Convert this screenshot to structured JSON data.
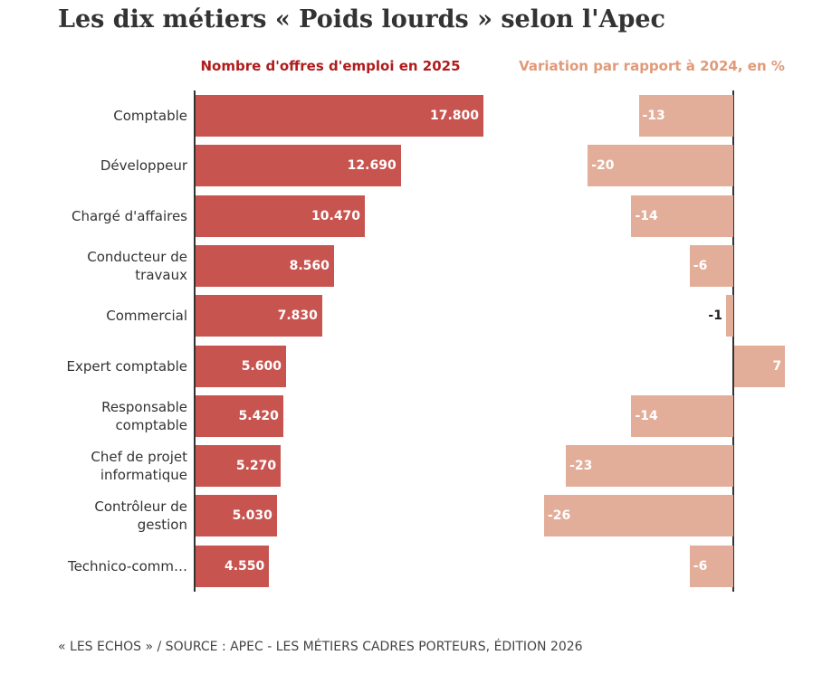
{
  "chart_data": {
    "type": "bar",
    "orientation": "horizontal",
    "title": "Les dix métiers « Poids lourds » selon l'Apec",
    "categories": [
      "Comptable",
      "Développeur",
      "Chargé d'affaires",
      "Conducteur de travaux",
      "Commercial",
      "Expert comptable",
      "Responsable comptable",
      "Chef de projet informatique",
      "Contrôleur de gestion",
      "Technico-comm…"
    ],
    "series": [
      {
        "name": "Nombre d'offres d'emploi en 2025",
        "color": "#c85450",
        "values": [
          17800,
          12690,
          10470,
          8560,
          7830,
          5600,
          5420,
          5270,
          5030,
          4550
        ],
        "value_labels": [
          "17.800",
          "12.690",
          "10.470",
          "8.560",
          "7.830",
          "5.600",
          "5.420",
          "5.270",
          "5.030",
          "4.550"
        ]
      },
      {
        "name": "Variation par rapport à 2024, en %",
        "color": "#e2ae9a",
        "values": [
          -13,
          -20,
          -14,
          -6,
          -1,
          7,
          -14,
          -23,
          -26,
          -6
        ]
      }
    ],
    "source": "« LES ECHOS » / SOURCE : APEC - LES MÉTIERS CADRES PORTEURS, ÉDITION 2026"
  }
}
